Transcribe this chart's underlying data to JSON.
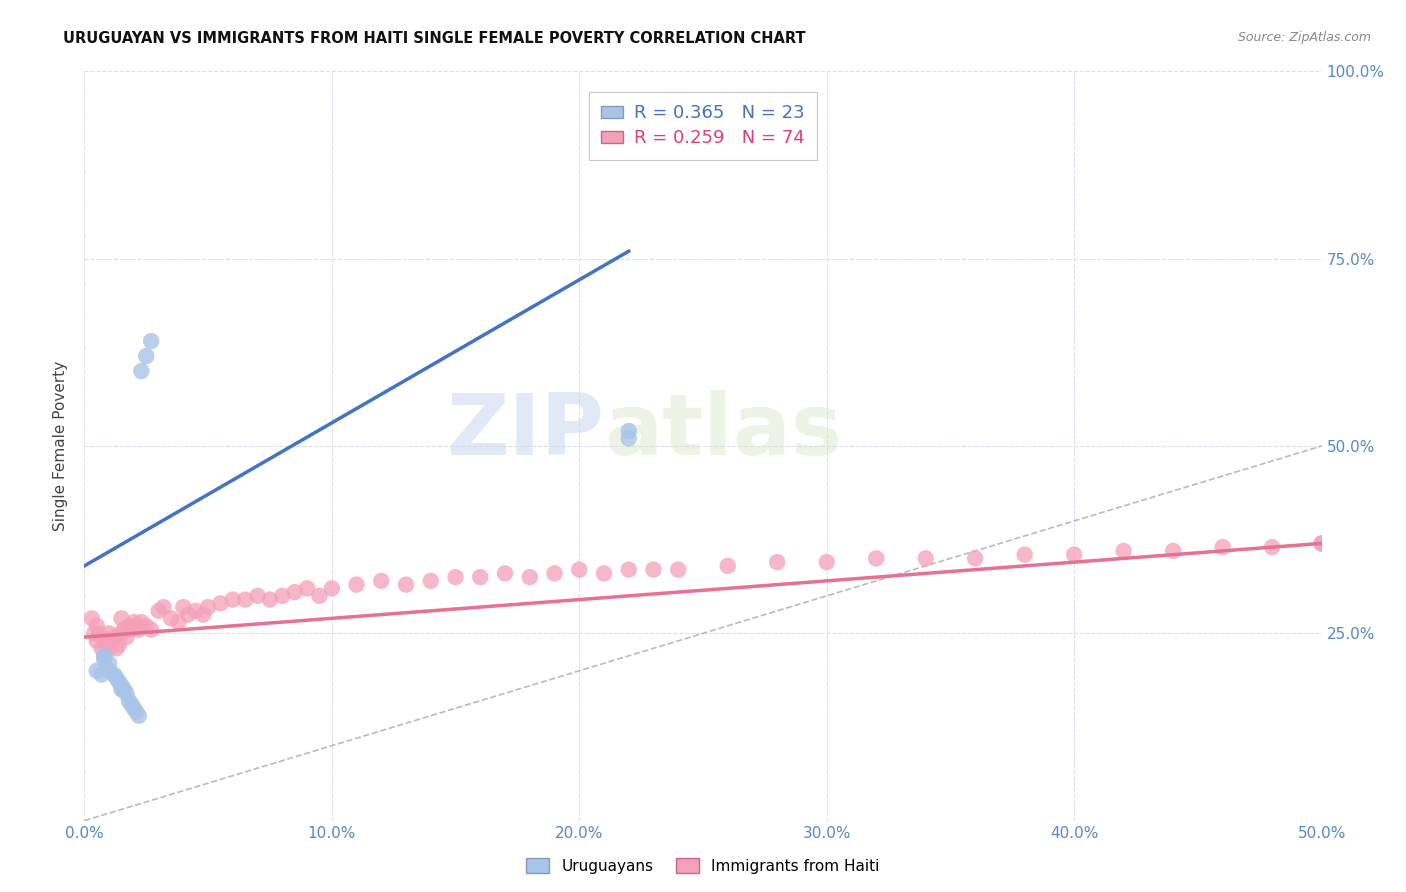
{
  "title": "URUGUAYAN VS IMMIGRANTS FROM HAITI SINGLE FEMALE POVERTY CORRELATION CHART",
  "source": "Source: ZipAtlas.com",
  "ylabel": "Single Female Poverty",
  "color_uruguayan": "#A8C4E8",
  "color_haiti": "#F4A0B8",
  "color_blue_line": "#4472C4",
  "color_pink_line": "#E87090",
  "color_diag": "#BBBBBB",
  "xlim": [
    0,
    0.5
  ],
  "ylim": [
    0,
    1.0
  ],
  "xtick_vals": [
    0.0,
    0.1,
    0.2,
    0.3,
    0.4,
    0.5
  ],
  "xtick_labels": [
    "0.0%",
    "10.0%",
    "20.0%",
    "30.0%",
    "40.0%",
    "50.0%"
  ],
  "ytick_vals": [
    0.0,
    0.25,
    0.5,
    0.75,
    1.0
  ],
  "ytick_labels": [
    "",
    "25.0%",
    "50.0%",
    "75.0%",
    "100.0%"
  ],
  "legend1_r": "0.365",
  "legend1_n": "23",
  "legend2_r": "0.259",
  "legend2_n": "74",
  "uruguayan_x": [
    0.005,
    0.007,
    0.008,
    0.008,
    0.01,
    0.01,
    0.012,
    0.013,
    0.014,
    0.015,
    0.015,
    0.016,
    0.017,
    0.018,
    0.019,
    0.02,
    0.021,
    0.022,
    0.023,
    0.025,
    0.027,
    0.22,
    0.22
  ],
  "uruguayan_y": [
    0.2,
    0.195,
    0.22,
    0.215,
    0.21,
    0.2,
    0.195,
    0.19,
    0.185,
    0.18,
    0.175,
    0.175,
    0.17,
    0.16,
    0.155,
    0.15,
    0.145,
    0.14,
    0.6,
    0.62,
    0.64,
    0.51,
    0.52
  ],
  "haiti_x": [
    0.003,
    0.004,
    0.005,
    0.005,
    0.006,
    0.007,
    0.008,
    0.008,
    0.009,
    0.01,
    0.01,
    0.011,
    0.012,
    0.013,
    0.014,
    0.015,
    0.015,
    0.016,
    0.017,
    0.018,
    0.019,
    0.02,
    0.021,
    0.022,
    0.023,
    0.025,
    0.027,
    0.03,
    0.032,
    0.035,
    0.038,
    0.04,
    0.042,
    0.045,
    0.048,
    0.05,
    0.055,
    0.06,
    0.065,
    0.07,
    0.075,
    0.08,
    0.085,
    0.09,
    0.095,
    0.1,
    0.11,
    0.12,
    0.13,
    0.14,
    0.15,
    0.16,
    0.17,
    0.18,
    0.19,
    0.2,
    0.21,
    0.22,
    0.23,
    0.24,
    0.26,
    0.28,
    0.3,
    0.32,
    0.34,
    0.36,
    0.38,
    0.4,
    0.42,
    0.44,
    0.46,
    0.48,
    0.5,
    0.5
  ],
  "haiti_y": [
    0.27,
    0.25,
    0.26,
    0.24,
    0.25,
    0.23,
    0.24,
    0.22,
    0.24,
    0.25,
    0.23,
    0.24,
    0.245,
    0.23,
    0.235,
    0.27,
    0.25,
    0.255,
    0.245,
    0.26,
    0.255,
    0.265,
    0.26,
    0.255,
    0.265,
    0.26,
    0.255,
    0.28,
    0.285,
    0.27,
    0.265,
    0.285,
    0.275,
    0.28,
    0.275,
    0.285,
    0.29,
    0.295,
    0.295,
    0.3,
    0.295,
    0.3,
    0.305,
    0.31,
    0.3,
    0.31,
    0.315,
    0.32,
    0.315,
    0.32,
    0.325,
    0.325,
    0.33,
    0.325,
    0.33,
    0.335,
    0.33,
    0.335,
    0.335,
    0.335,
    0.34,
    0.345,
    0.345,
    0.35,
    0.35,
    0.35,
    0.355,
    0.355,
    0.36,
    0.36,
    0.365,
    0.365,
    0.37,
    0.37
  ],
  "blue_line_x": [
    0.0,
    0.22
  ],
  "blue_line_y": [
    0.34,
    0.76
  ],
  "pink_line_x": [
    0.0,
    0.5
  ],
  "pink_line_y": [
    0.245,
    0.37
  ]
}
